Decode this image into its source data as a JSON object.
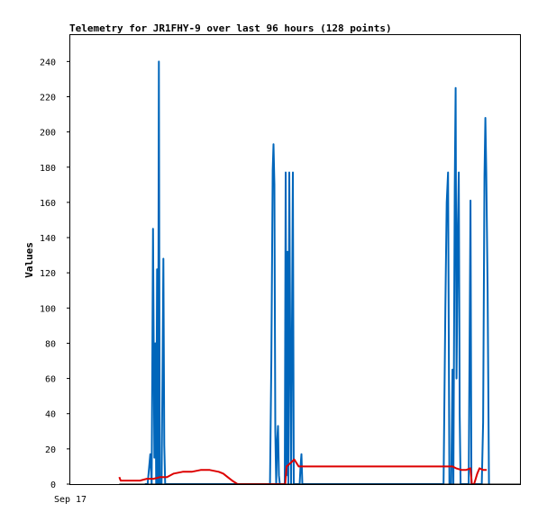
{
  "chart_data": {
    "type": "line",
    "title": "Telemetry for JR1FHY-9 over last 96 hours (128 points)",
    "xlabel": "",
    "ylabel": "Values",
    "x_tick_labels": [
      "Sep 17"
    ],
    "y_ticks": [
      0,
      20,
      40,
      60,
      80,
      100,
      120,
      140,
      160,
      180,
      200,
      220,
      240
    ],
    "ylim": [
      0,
      255
    ],
    "xlim": [
      0,
      1
    ],
    "grid": false,
    "legend": "none",
    "series": [
      {
        "color": "#0066bb",
        "points": [
          [
            0.166,
            0
          ],
          [
            0.172,
            0
          ],
          [
            0.178,
            17
          ],
          [
            0.181,
            0
          ],
          [
            0.184,
            145
          ],
          [
            0.187,
            15
          ],
          [
            0.189,
            80
          ],
          [
            0.191,
            0
          ],
          [
            0.193,
            122
          ],
          [
            0.195,
            0
          ],
          [
            0.197,
            240
          ],
          [
            0.199,
            0
          ],
          [
            0.203,
            0
          ],
          [
            0.205,
            60
          ],
          [
            0.207,
            128
          ],
          [
            0.209,
            22
          ],
          [
            0.211,
            0
          ],
          [
            0.444,
            0
          ],
          [
            0.447,
            70
          ],
          [
            0.45,
            178
          ],
          [
            0.452,
            193
          ],
          [
            0.454,
            170
          ],
          [
            0.456,
            30
          ],
          [
            0.458,
            0
          ],
          [
            0.46,
            24
          ],
          [
            0.462,
            33
          ],
          [
            0.464,
            5
          ],
          [
            0.466,
            0
          ],
          [
            0.477,
            0
          ],
          [
            0.479,
            177
          ],
          [
            0.481,
            5
          ],
          [
            0.483,
            132
          ],
          [
            0.485,
            0
          ],
          [
            0.487,
            177
          ],
          [
            0.489,
            84
          ],
          [
            0.491,
            0
          ],
          [
            0.493,
            90
          ],
          [
            0.495,
            177
          ],
          [
            0.497,
            0
          ],
          [
            0.499,
            0
          ],
          [
            0.51,
            0
          ],
          [
            0.512,
            10
          ],
          [
            0.514,
            17
          ],
          [
            0.516,
            0
          ],
          [
            0.83,
            0
          ],
          [
            0.834,
            100
          ],
          [
            0.837,
            160
          ],
          [
            0.84,
            177
          ],
          [
            0.843,
            0
          ],
          [
            0.847,
            0
          ],
          [
            0.85,
            65
          ],
          [
            0.852,
            0
          ],
          [
            0.855,
            168
          ],
          [
            0.857,
            225
          ],
          [
            0.859,
            60
          ],
          [
            0.862,
            148
          ],
          [
            0.864,
            177
          ],
          [
            0.866,
            40
          ],
          [
            0.868,
            0
          ],
          [
            0.883,
            0
          ],
          [
            0.886,
            0
          ],
          [
            0.888,
            80
          ],
          [
            0.89,
            161
          ],
          [
            0.892,
            0
          ],
          [
            0.896,
            0
          ],
          [
            0.915,
            0
          ],
          [
            0.918,
            35
          ],
          [
            0.921,
            175
          ],
          [
            0.923,
            208
          ],
          [
            0.925,
            177
          ],
          [
            0.928,
            110
          ],
          [
            0.931,
            0
          ]
        ]
      },
      {
        "color": "#dd0000",
        "points": [
          [
            0.109,
            4
          ],
          [
            0.112,
            2
          ],
          [
            0.125,
            2
          ],
          [
            0.14,
            2
          ],
          [
            0.155,
            2
          ],
          [
            0.17,
            3
          ],
          [
            0.185,
            3
          ],
          [
            0.2,
            4
          ],
          [
            0.215,
            4
          ],
          [
            0.23,
            6
          ],
          [
            0.25,
            7
          ],
          [
            0.27,
            7
          ],
          [
            0.29,
            8
          ],
          [
            0.31,
            8
          ],
          [
            0.33,
            7
          ],
          [
            0.34,
            6
          ],
          [
            0.35,
            4
          ],
          [
            0.36,
            2
          ],
          [
            0.372,
            0
          ],
          [
            0.38,
            0
          ],
          [
            0.478,
            0
          ],
          [
            0.481,
            10
          ],
          [
            0.49,
            12
          ],
          [
            0.498,
            14
          ],
          [
            0.503,
            12
          ],
          [
            0.508,
            10
          ],
          [
            0.85,
            10
          ],
          [
            0.858,
            9
          ],
          [
            0.87,
            8
          ],
          [
            0.88,
            8
          ],
          [
            0.89,
            9
          ],
          [
            0.893,
            0
          ],
          [
            0.898,
            0
          ],
          [
            0.905,
            6
          ],
          [
            0.91,
            9
          ],
          [
            0.918,
            8
          ],
          [
            0.926,
            8
          ]
        ]
      },
      {
        "color": "#000000",
        "points": [
          [
            0.109,
            0
          ],
          [
            1.0,
            0
          ]
        ]
      }
    ]
  }
}
